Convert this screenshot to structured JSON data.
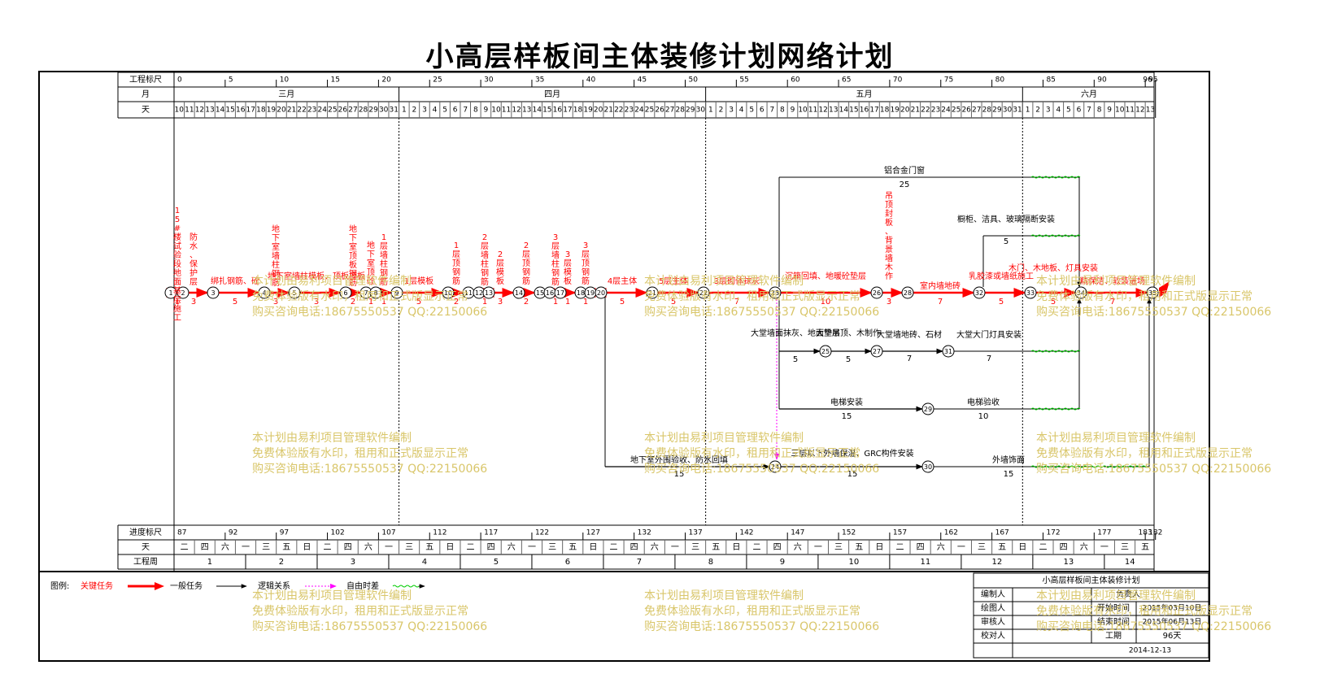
{
  "title": "小高层样板间主体装修计划网络计划",
  "header_rows": {
    "scale_label": "工程标尺",
    "month_label": "月",
    "day_label": "天",
    "scale_ticks": [
      "0",
      "5",
      "10",
      "15",
      "20",
      "25",
      "30",
      "35",
      "40",
      "45",
      "50",
      "55",
      "60",
      "65",
      "70",
      "75",
      "80",
      "85",
      "90",
      "95",
      "96"
    ],
    "months": [
      "三月",
      "四月",
      "五月",
      "六月"
    ],
    "days": [
      10,
      11,
      12,
      13,
      14,
      15,
      16,
      17,
      18,
      19,
      20,
      21,
      22,
      23,
      24,
      25,
      26,
      27,
      28,
      29,
      30,
      31,
      1,
      2,
      3,
      4,
      5,
      6,
      7,
      8,
      9,
      10,
      11,
      12,
      13,
      14,
      15,
      16,
      17,
      18,
      19,
      20,
      21,
      22,
      23,
      24,
      25,
      26,
      27,
      28,
      29,
      30,
      1,
      2,
      3,
      4,
      5,
      6,
      7,
      8,
      9,
      10,
      11,
      12,
      13,
      14,
      15,
      16,
      17,
      18,
      19,
      20,
      21,
      22,
      23,
      24,
      25,
      26,
      27,
      28,
      29,
      30,
      31,
      1,
      2,
      3,
      4,
      5,
      6,
      7,
      8,
      9,
      10,
      11,
      12,
      13
    ]
  },
  "footer_rows": {
    "progress_label": "进度标尺",
    "day_label": "天",
    "week_label": "工程周",
    "progress_ticks": [
      "87",
      "92",
      "97",
      "102",
      "107",
      "112",
      "117",
      "122",
      "127",
      "132",
      "137",
      "142",
      "147",
      "152",
      "157",
      "162",
      "167",
      "172",
      "177",
      "182",
      "183"
    ],
    "weekdays": [
      "二",
      "四",
      "六",
      "一",
      "三",
      "五",
      "日",
      "二",
      "四",
      "六",
      "一",
      "三",
      "五",
      "日",
      "二",
      "四",
      "六",
      "一",
      "三",
      "五",
      "日",
      "二",
      "四",
      "六",
      "一",
      "三",
      "五",
      "日",
      "二",
      "四",
      "六",
      "一",
      "三",
      "五",
      "日",
      "二",
      "四",
      "六",
      "一",
      "三",
      "五",
      "日",
      "二",
      "四",
      "六",
      "一",
      "三",
      "五"
    ],
    "weeks": [
      "1",
      "2",
      "3",
      "4",
      "5",
      "6",
      "7",
      "8",
      "9",
      "10",
      "11",
      "12",
      "13",
      "14"
    ]
  },
  "nodes": [
    "1",
    "2",
    "3",
    "4",
    "5",
    "6",
    "7",
    "8",
    "9",
    "10",
    "11",
    "12",
    "13",
    "14",
    "15",
    "16",
    "17",
    "18",
    "19",
    "20",
    "21",
    "22",
    "23",
    "24",
    "25",
    "26",
    "27",
    "28",
    "29",
    "30",
    "31",
    "32",
    "33",
    "34",
    "35"
  ],
  "tasks": [
    {
      "name": "15#楼试验段地面基层施工",
      "dur": "1"
    },
    {
      "name": "防水、保护层",
      "dur": "3"
    },
    {
      "name": "绑扎钢筋、砼",
      "dur": "5"
    },
    {
      "name": "地下室墙柱钢筋",
      "dur": "3"
    },
    {
      "name": "地下室墙柱模板、顶板模板",
      "dur": "3"
    },
    {
      "name": "地下室顶板钢筋",
      "dur": "2"
    },
    {
      "name": "地下室顶砼",
      "dur": "1"
    },
    {
      "name": "1层墙柱钢筋",
      "dur": "1"
    },
    {
      "name": "1层模板",
      "dur": "5"
    },
    {
      "name": "1层顶钢筋",
      "dur": "2"
    },
    {
      "name": "2层墙柱钢筋",
      "dur": "1"
    },
    {
      "name": "2层模板",
      "dur": "3"
    },
    {
      "name": "2层顶钢筋",
      "dur": "2"
    },
    {
      "name": "3层墙柱钢筋",
      "dur": "1"
    },
    {
      "name": "3层模板",
      "dur": "1"
    },
    {
      "name": "3层顶钢筋",
      "dur": "1"
    },
    {
      "name": "4层主体",
      "dur": "5"
    },
    {
      "name": "5层主体",
      "dur": "5"
    },
    {
      "name": "3层砌体抹灰",
      "dur": "7"
    },
    {
      "name": "沉箱回填、地暖砼垫层",
      "dur": "10"
    },
    {
      "name": "吊顶封板、背景墙木作",
      "dur": "3"
    },
    {
      "name": "室内墙地砖",
      "dur": "7"
    },
    {
      "name": "乳胶漆或墙纸施工",
      "dur": "5"
    },
    {
      "name": "木门、木地板、灯具安装",
      "dur": "5"
    },
    {
      "name": "精保洁、软装进场",
      "dur": "7"
    },
    {
      "name": "铝合金门窗",
      "dur": "25"
    },
    {
      "name": "橱柜、洁具、玻璃隔断安装",
      "dur": "5"
    },
    {
      "name": "大堂墙面抹灰、地面垫层",
      "dur": "5"
    },
    {
      "name": "大堂吊顶、木制作",
      "dur": "5"
    },
    {
      "name": "大堂墙地砖、石材",
      "dur": "7"
    },
    {
      "name": "大堂大门灯具安装",
      "dur": "7"
    },
    {
      "name": "电梯安装",
      "dur": "15"
    },
    {
      "name": "电梯验收",
      "dur": "10"
    },
    {
      "name": "地下室外围验收、防水回填",
      "dur": "15"
    },
    {
      "name": "三层以下外墙保温、GRC构件安装",
      "dur": "15"
    },
    {
      "name": "外墙饰面",
      "dur": "15"
    }
  ],
  "legend": {
    "label": "图例:",
    "critical": "关键任务",
    "normal": "一般任务",
    "logic": "逻辑关系",
    "free_float": "自由时差"
  },
  "info_table": {
    "title": "小高层样板间主体装修计划",
    "editor_label": "编制人",
    "drawer_label": "绘图人",
    "reviewer_label": "审核人",
    "checker_label": "校对人",
    "owner_label": "负责人",
    "start_label": "开始时间",
    "start_value": "2015年03月10日",
    "end_label": "结束时间",
    "end_value": "2015年06月13日",
    "duration_label": "工期",
    "duration_value": "96天",
    "date": "2014-12-13"
  },
  "watermark": {
    "line1": "本计划由易利项目管理软件编制",
    "line2": "免费体验版有水印，租用和正式版显示正常",
    "line3": "购买咨询电话:18675550537 QQ:22150066"
  },
  "colors": {
    "critical": "#ff0000",
    "normal": "#000000",
    "free_float": "#00cc00",
    "logic": "#ff00ff",
    "watermark": "#d9c66a"
  }
}
